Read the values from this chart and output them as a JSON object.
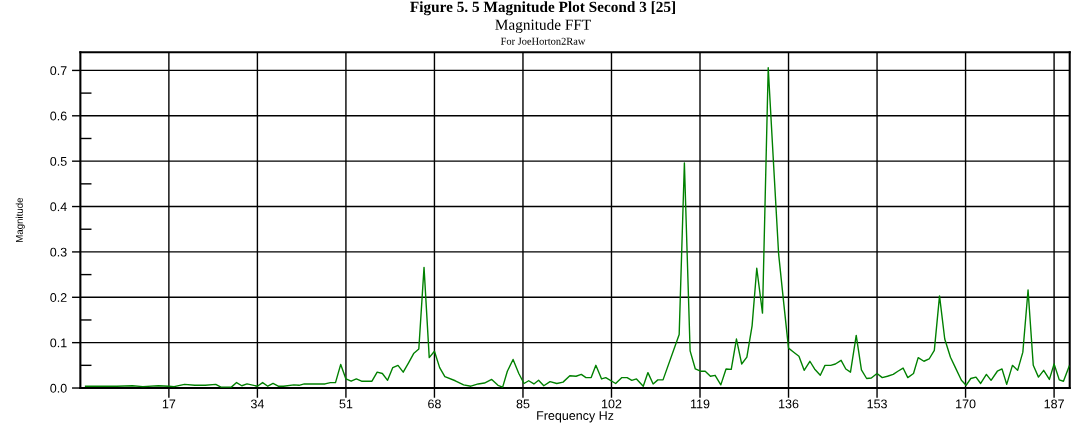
{
  "chart_data": {
    "type": "line",
    "title": "Figure 5. 5 Magnitude Plot Second 3 [25]",
    "subtitle": "Magnitude FFT",
    "annotations": [
      "For JoeHorton2Raw"
    ],
    "xlabel": "Frequency Hz",
    "ylabel": "Magnitude",
    "xlim": [
      0,
      190
    ],
    "xticks": [
      17,
      34,
      51,
      68,
      85,
      102,
      119,
      136,
      153,
      170,
      187
    ],
    "ylim": [
      0,
      0.74
    ],
    "yticks": [
      {
        "value": 0,
        "label": "0.0"
      },
      {
        "value": 0.05,
        "label": null
      },
      {
        "value": 0.1,
        "label": "0.1"
      },
      {
        "value": 0.15,
        "label": null
      },
      {
        "value": 0.2,
        "label": "0.2"
      },
      {
        "value": 0.25,
        "label": null
      },
      {
        "value": 0.3,
        "label": "0.3"
      },
      {
        "value": 0.35,
        "label": null
      },
      {
        "value": 0.4,
        "label": "0.4"
      },
      {
        "value": 0.45,
        "label": null
      },
      {
        "value": 0.5,
        "label": "0.5"
      },
      {
        "value": 0.55,
        "label": null
      },
      {
        "value": 0.6,
        "label": "0.6"
      },
      {
        "value": 0.65,
        "label": null
      },
      {
        "value": 0.7,
        "label": "0.7"
      }
    ],
    "grid": true,
    "marker": "none",
    "line_style": "solid",
    "series": [
      {
        "color": "#008000",
        "x": [
          1,
          4,
          7,
          10,
          12,
          15,
          17,
          18,
          20,
          22,
          24,
          26,
          27,
          29,
          30,
          31,
          32,
          34,
          35,
          36,
          37,
          38,
          39,
          41,
          42,
          43,
          44,
          46,
          47,
          48,
          49,
          50,
          51,
          52,
          53,
          54,
          55,
          56,
          57,
          58,
          59,
          60,
          61,
          62,
          63,
          64,
          65,
          66,
          67,
          68,
          69,
          70,
          72,
          73.6,
          75,
          76.4,
          77.6,
          79,
          80.2,
          81.1,
          82,
          83.1,
          84.2,
          85.2,
          86.1,
          87.1,
          88,
          89,
          90.2,
          91.5,
          92.7,
          94,
          95.2,
          96.2,
          97.1,
          98.1,
          99,
          100.1,
          100.9,
          102.8,
          104,
          105,
          105.9,
          106.8,
          108.1,
          109,
          110,
          110.9,
          111.9,
          115,
          116,
          117.1,
          118.1,
          119.1,
          120,
          121,
          121.9,
          123,
          124,
          125,
          126,
          127,
          128,
          129,
          129.9,
          131,
          132.1,
          133.1,
          134.1,
          135.1,
          136,
          137,
          138,
          139,
          140.1,
          141,
          142.1,
          143,
          144.1,
          145,
          146.1,
          147,
          147.9,
          149,
          150,
          151,
          151.9,
          153,
          154,
          155,
          156.1,
          157,
          158,
          158.9,
          160,
          160.9,
          162,
          163,
          164,
          165,
          166,
          167.1,
          168,
          169.2,
          170.1,
          171,
          172,
          172.9,
          174,
          174.9,
          176.1,
          177,
          177.9,
          179,
          180,
          181,
          182,
          183,
          184,
          185,
          186.1,
          187,
          188,
          188.8,
          189.9
        ],
        "values": [
          0.004,
          0.004,
          0.004,
          0.005,
          0.003,
          0.005,
          0.004,
          0.003,
          0.008,
          0.006,
          0.006,
          0.008,
          0.002,
          0.002,
          0.012,
          0.005,
          0.009,
          0.004,
          0.012,
          0.004,
          0.01,
          0.004,
          0.004,
          0.007,
          0.006,
          0.009,
          0.009,
          0.009,
          0.009,
          0.012,
          0.012,
          0.052,
          0.02,
          0.015,
          0.02,
          0.015,
          0.015,
          0.015,
          0.035,
          0.032,
          0.017,
          0.045,
          0.05,
          0.035,
          0.055,
          0.076,
          0.086,
          0.266,
          0.067,
          0.081,
          0.045,
          0.025,
          0.016,
          0.007,
          0.004,
          0.009,
          0.011,
          0.019,
          0.006,
          0.002,
          0.037,
          0.063,
          0.032,
          0.01,
          0.016,
          0.009,
          0.017,
          0.005,
          0.014,
          0.01,
          0.013,
          0.027,
          0.026,
          0.03,
          0.023,
          0.023,
          0.05,
          0.02,
          0.023,
          0.01,
          0.023,
          0.023,
          0.017,
          0.02,
          0.004,
          0.034,
          0.009,
          0.018,
          0.018,
          0.118,
          0.496,
          0.082,
          0.042,
          0.037,
          0.037,
          0.026,
          0.028,
          0.007,
          0.042,
          0.041,
          0.108,
          0.053,
          0.068,
          0.137,
          0.264,
          0.165,
          0.706,
          0.499,
          0.295,
          0.185,
          0.088,
          0.079,
          0.07,
          0.039,
          0.059,
          0.042,
          0.028,
          0.05,
          0.05,
          0.053,
          0.061,
          0.042,
          0.035,
          0.116,
          0.04,
          0.021,
          0.022,
          0.032,
          0.023,
          0.026,
          0.03,
          0.037,
          0.044,
          0.023,
          0.032,
          0.067,
          0.059,
          0.064,
          0.083,
          0.203,
          0.108,
          0.068,
          0.046,
          0.017,
          0.006,
          0.021,
          0.024,
          0.01,
          0.03,
          0.017,
          0.037,
          0.042,
          0.008,
          0.05,
          0.039,
          0.079,
          0.216,
          0.05,
          0.024,
          0.039,
          0.019,
          0.053,
          0.018,
          0.015,
          0.048
        ]
      }
    ]
  }
}
